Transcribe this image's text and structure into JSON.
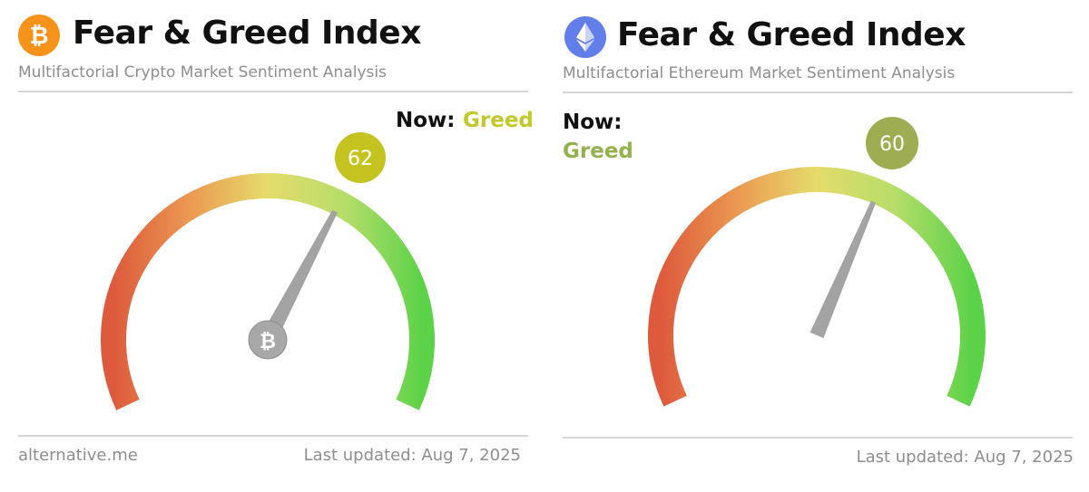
{
  "colors": {
    "bitcoin_orange": "#f7931a",
    "ethereum_blue": "#627eea",
    "greed_text": "#c3c92a",
    "greed_text_eth": "#93b24e",
    "needle": "#9a9a9a"
  },
  "btc_panel": {
    "icon": "bitcoin-icon",
    "title": "Fear & Greed Index",
    "subtitle": "Multifactorial Crypto Market Sentiment Analysis",
    "now_label": "Now:",
    "now_value": "Greed",
    "footer_left": "alternative.me",
    "footer_right": "Last updated: Aug 7, 2025"
  },
  "eth_panel": {
    "icon": "ethereum-icon",
    "title": "Fear & Greed Index",
    "subtitle": "Multifactorial Ethereum Market Sentiment Analysis",
    "now_label": "Now:",
    "now_value": "Greed",
    "footer_right": "Last updated: Aug 7, 2025"
  },
  "chart_data": [
    {
      "type": "gauge",
      "title": "Fear & Greed Index",
      "value": 62,
      "value_label": "62",
      "range": [
        0,
        100
      ],
      "classification": "Greed",
      "bubble_color": "#c5c31f"
    },
    {
      "type": "gauge",
      "title": "Fear & Greed Index",
      "value": 60,
      "value_label": "60",
      "range": [
        0,
        100
      ],
      "classification": "Greed",
      "bubble_color": "#9ead52"
    }
  ]
}
